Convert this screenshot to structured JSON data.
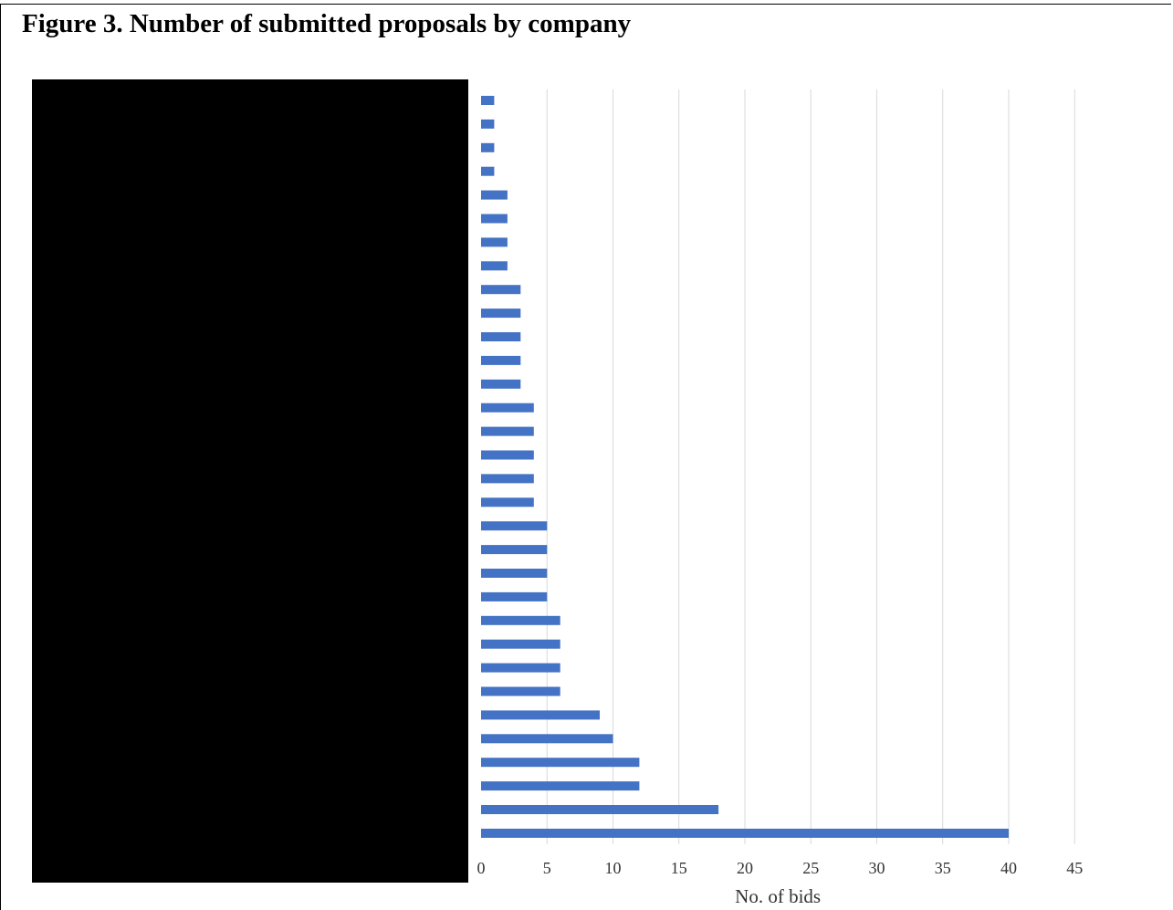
{
  "figure": {
    "title": "Figure 3. Number of submitted proposals by company"
  },
  "chart_data": {
    "type": "bar",
    "orientation": "horizontal",
    "title": "Figure 3. Number of submitted proposals by company",
    "xlabel": "No. of bids",
    "ylabel": "",
    "xlim": [
      0,
      45
    ],
    "xticks": [
      0,
      5,
      10,
      15,
      20,
      25,
      30,
      35,
      40,
      45
    ],
    "grid": "vertical",
    "category_labels": "redacted",
    "bar_color": "#4472C4",
    "values_top_to_bottom": [
      1,
      1,
      1,
      1,
      2,
      2,
      2,
      2,
      3,
      3,
      3,
      3,
      3,
      4,
      4,
      4,
      4,
      4,
      5,
      5,
      5,
      5,
      6,
      6,
      6,
      6,
      9,
      10,
      12,
      12,
      18,
      40
    ]
  }
}
